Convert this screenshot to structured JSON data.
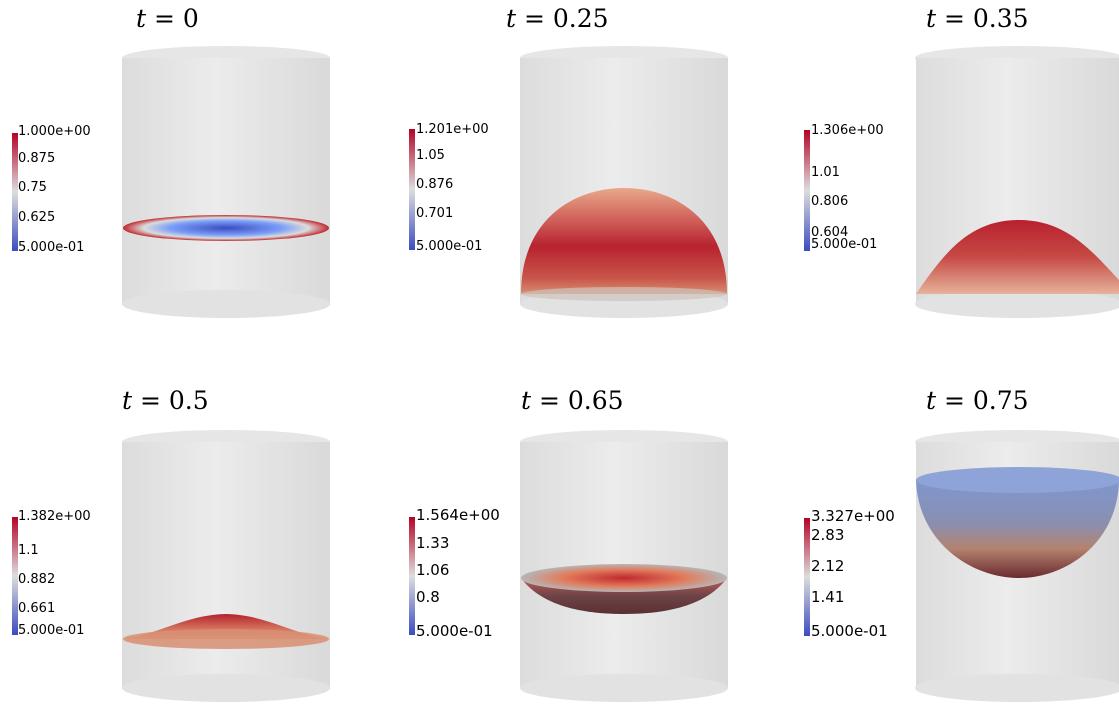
{
  "panels": [
    {
      "title_var": "t",
      "title_value": "0",
      "labels": [
        "1.000e+00",
        "0.875",
        "0.75",
        "0.625",
        "5.000e-01"
      ]
    },
    {
      "title_var": "t",
      "title_value": "0.25",
      "labels": [
        "1.201e+00",
        "1.05",
        "0.876",
        "0.701",
        "5.000e-01"
      ]
    },
    {
      "title_var": "t",
      "title_value": "0.35",
      "labels": [
        "1.306e+00",
        "1.01",
        "0.806",
        "0.604",
        "5.000e-01"
      ]
    },
    {
      "title_var": "t",
      "title_value": "0.5",
      "labels": [
        "1.382e+00",
        "1.1",
        "0.882",
        "0.661",
        "5.000e-01"
      ]
    },
    {
      "title_var": "t",
      "title_value": "0.65",
      "labels": [
        "1.564e+00",
        "1.33",
        "1.06",
        "0.8",
        "5.000e-01"
      ]
    },
    {
      "title_var": "t",
      "title_value": "0.75",
      "labels": [
        "3.327e+00",
        "2.83",
        "2.12",
        "1.41",
        "5.000e-01"
      ]
    }
  ],
  "colormap": {
    "high": "#b40426",
    "mid": "#dddddd",
    "low": "#3b4cc0"
  }
}
